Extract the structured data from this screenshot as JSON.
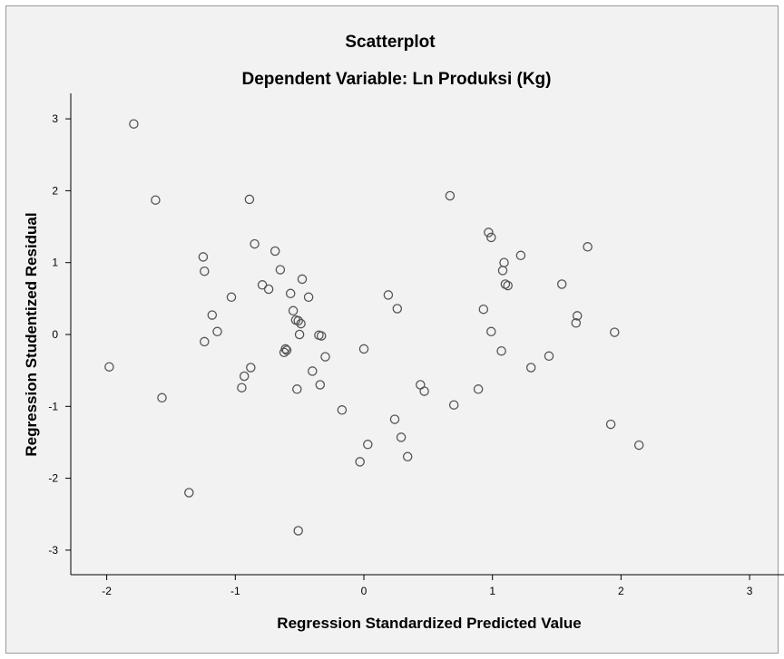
{
  "chart_data": {
    "type": "scatter",
    "title": "Scatterplot",
    "subtitle": "Dependent Variable: Ln Produksi (Kg)",
    "xlabel": "Regression Standardized Predicted Value",
    "ylabel": "Regression Studentized Residual",
    "xlim": [
      -2.3,
      3.3
    ],
    "ylim": [
      -3.35,
      3.3
    ],
    "xticks": [
      -2,
      -1,
      0,
      1,
      2,
      3
    ],
    "yticks": [
      3,
      2,
      1,
      0,
      -1,
      -2,
      -3
    ],
    "xtick_labels": [
      "-2",
      "-1",
      "0",
      "1",
      "2",
      "3"
    ],
    "ytick_labels": [
      "3",
      "2",
      "1",
      "0",
      "-1",
      "-2",
      "-3"
    ],
    "grid": false,
    "legend": "none",
    "colors": {
      "background": "#f2f2f2",
      "marker": "#555555",
      "axis": "#000000",
      "frame": "#9a9a9a"
    },
    "series": [
      {
        "marker": "open-circle",
        "points": [
          [
            -1.79,
            2.93
          ],
          [
            -1.62,
            1.87
          ],
          [
            -1.98,
            -0.45
          ],
          [
            -1.57,
            -0.88
          ],
          [
            -1.36,
            -2.2
          ],
          [
            -1.25,
            1.08
          ],
          [
            -1.24,
            0.88
          ],
          [
            -1.24,
            -0.1
          ],
          [
            -1.18,
            0.27
          ],
          [
            -1.14,
            0.04
          ],
          [
            -1.03,
            0.52
          ],
          [
            -0.95,
            -0.74
          ],
          [
            -0.93,
            -0.58
          ],
          [
            -0.89,
            1.88
          ],
          [
            -0.88,
            -0.46
          ],
          [
            -0.85,
            1.26
          ],
          [
            -0.79,
            0.69
          ],
          [
            -0.74,
            0.63
          ],
          [
            -0.69,
            1.16
          ],
          [
            -0.65,
            0.9
          ],
          [
            -0.61,
            -0.2
          ],
          [
            -0.62,
            -0.25
          ],
          [
            -0.6,
            -0.22
          ],
          [
            -0.57,
            0.57
          ],
          [
            -0.55,
            0.33
          ],
          [
            -0.53,
            0.2
          ],
          [
            -0.51,
            0.19
          ],
          [
            -0.49,
            0.15
          ],
          [
            -0.5,
            0.0
          ],
          [
            -0.52,
            -0.76
          ],
          [
            -0.48,
            0.77
          ],
          [
            -0.43,
            0.52
          ],
          [
            -0.4,
            -0.51
          ],
          [
            -0.35,
            -0.01
          ],
          [
            -0.33,
            -0.02
          ],
          [
            -0.34,
            -0.7
          ],
          [
            -0.3,
            -0.31
          ],
          [
            -0.51,
            -2.73
          ],
          [
            -0.17,
            -1.05
          ],
          [
            -0.03,
            -1.77
          ],
          [
            0.0,
            -0.2
          ],
          [
            0.03,
            -1.53
          ],
          [
            0.19,
            0.55
          ],
          [
            0.24,
            -1.18
          ],
          [
            0.26,
            0.36
          ],
          [
            0.29,
            -1.43
          ],
          [
            0.34,
            -1.7
          ],
          [
            0.44,
            -0.7
          ],
          [
            0.47,
            -0.79
          ],
          [
            0.67,
            1.93
          ],
          [
            0.7,
            -0.98
          ],
          [
            0.89,
            -0.76
          ],
          [
            0.93,
            0.35
          ],
          [
            0.97,
            1.42
          ],
          [
            0.99,
            1.35
          ],
          [
            0.99,
            0.04
          ],
          [
            1.07,
            -0.23
          ],
          [
            1.08,
            0.89
          ],
          [
            1.09,
            1.0
          ],
          [
            1.1,
            0.7
          ],
          [
            1.12,
            0.68
          ],
          [
            1.22,
            1.1
          ],
          [
            1.3,
            -0.46
          ],
          [
            1.44,
            -0.3
          ],
          [
            1.54,
            0.7
          ],
          [
            1.65,
            0.16
          ],
          [
            1.66,
            0.26
          ],
          [
            1.74,
            1.22
          ],
          [
            1.92,
            -1.25
          ],
          [
            1.95,
            0.03
          ],
          [
            2.14,
            -1.54
          ]
        ]
      }
    ]
  }
}
